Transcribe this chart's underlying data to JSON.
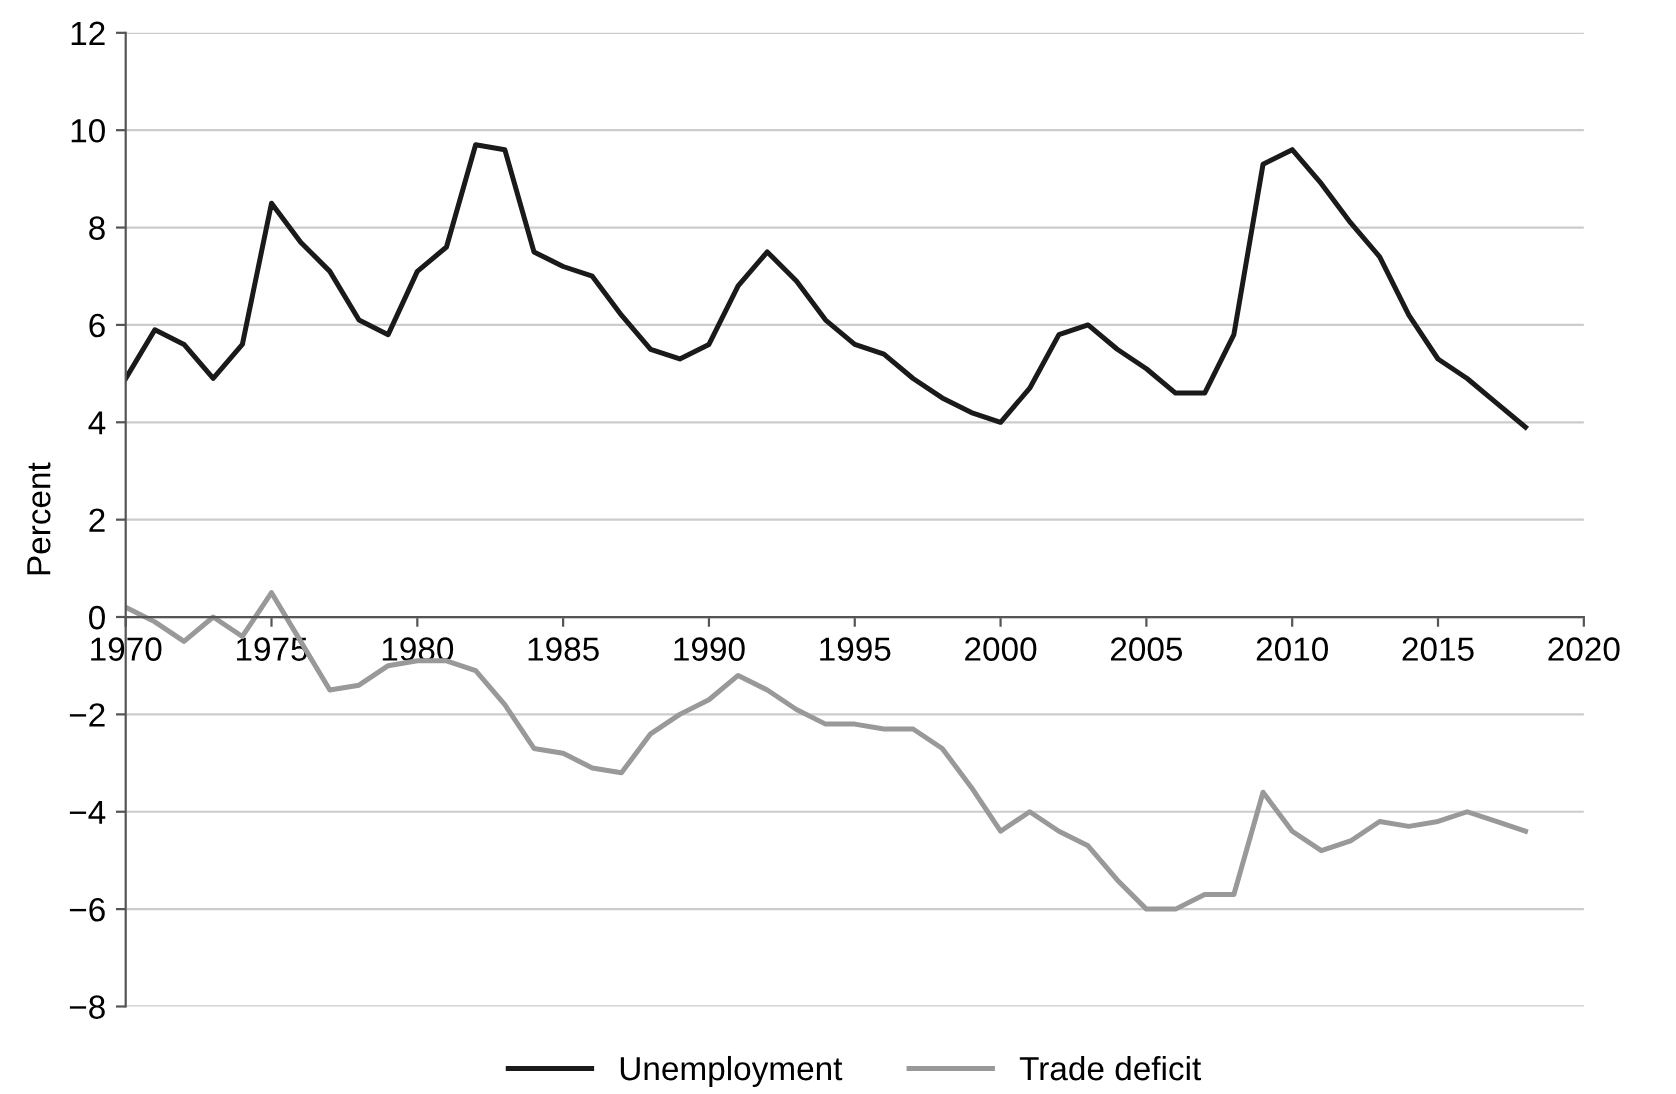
{
  "chart_data": {
    "type": "line",
    "ylabel": "Percent",
    "x": [
      1970,
      1971,
      1972,
      1973,
      1974,
      1975,
      1976,
      1977,
      1978,
      1979,
      1980,
      1981,
      1982,
      1983,
      1984,
      1985,
      1986,
      1987,
      1988,
      1989,
      1990,
      1991,
      1992,
      1993,
      1994,
      1995,
      1996,
      1997,
      1998,
      1999,
      2000,
      2001,
      2002,
      2003,
      2004,
      2005,
      2006,
      2007,
      2008,
      2009,
      2010,
      2011,
      2012,
      2013,
      2014,
      2015,
      2016,
      2017,
      2018
    ],
    "series": [
      {
        "name": "Unemployment",
        "color": "#1a1a1a",
        "values": [
          4.9,
          5.9,
          5.6,
          4.9,
          5.6,
          8.5,
          7.7,
          7.1,
          6.1,
          5.8,
          7.1,
          7.6,
          9.7,
          9.6,
          7.5,
          7.2,
          7.0,
          6.2,
          5.5,
          5.3,
          5.6,
          6.8,
          7.5,
          6.9,
          6.1,
          5.6,
          5.4,
          4.9,
          4.5,
          4.2,
          4.0,
          4.7,
          5.8,
          6.0,
          5.5,
          5.1,
          4.6,
          4.6,
          5.8,
          9.3,
          9.6,
          8.9,
          8.1,
          7.4,
          6.2,
          5.3,
          4.9,
          4.4,
          3.9
        ]
      },
      {
        "name": "Trade deficit",
        "color": "#999999",
        "values": [
          0.2,
          -0.1,
          -0.5,
          0.0,
          -0.4,
          0.5,
          -0.5,
          -1.5,
          -1.4,
          -1.0,
          -0.9,
          -0.9,
          -1.1,
          -1.8,
          -2.7,
          -2.8,
          -3.1,
          -3.2,
          -2.4,
          -2.0,
          -1.7,
          -1.2,
          -1.5,
          -1.9,
          -2.2,
          -2.2,
          -2.3,
          -2.3,
          -2.7,
          -3.5,
          -4.4,
          -4.0,
          -4.4,
          -4.7,
          -5.4,
          -6.0,
          -6.0,
          -5.7,
          -5.7,
          -3.6,
          -4.4,
          -4.8,
          -4.6,
          -4.2,
          -4.3,
          -4.2,
          -4.0,
          -4.2,
          -4.4
        ]
      }
    ],
    "xlim": [
      1970,
      2020
    ],
    "xticks": [
      1970,
      1975,
      1980,
      1985,
      1990,
      1995,
      2000,
      2005,
      2010,
      2015,
      2020
    ],
    "ylim": [
      -8,
      12
    ],
    "yticks": [
      {
        "value": -8,
        "label": "−8"
      },
      {
        "value": -6,
        "label": "−6"
      },
      {
        "value": -4,
        "label": "−4"
      },
      {
        "value": -2,
        "label": "−2"
      },
      0,
      2,
      4,
      6,
      8,
      10,
      12
    ],
    "grid": "y",
    "legend": "bottom",
    "marker": "none",
    "line_style": "solid"
  }
}
